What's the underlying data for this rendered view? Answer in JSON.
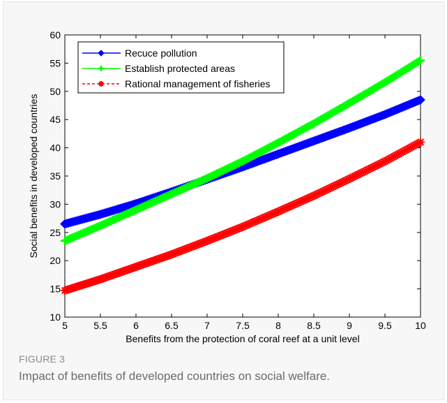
{
  "figure": {
    "label": "FIGURE 3",
    "caption": "Impact of benefits of developed countries on social welfare."
  },
  "chart_data": {
    "type": "line",
    "xlabel": "Benefits from the protection of coral reef at a unit level",
    "ylabel": "Social benefits in developed countries",
    "xlim": [
      5,
      10
    ],
    "ylim": [
      10,
      60
    ],
    "x_ticks": [
      "5",
      "5.5",
      "6",
      "6.5",
      "7",
      "7.5",
      "8",
      "8.5",
      "9",
      "9.5",
      "10"
    ],
    "y_ticks": [
      "10",
      "15",
      "20",
      "25",
      "30",
      "35",
      "40",
      "45",
      "50",
      "55",
      "60"
    ],
    "grid": false,
    "legend_position": "top-left",
    "x": [
      5,
      5.5,
      6,
      6.5,
      7,
      7.5,
      8,
      8.5,
      9,
      9.5,
      10
    ],
    "series": [
      {
        "name": "Recuce pollution",
        "color": "#0000ff",
        "marker": "diamond",
        "line_style": "solid",
        "values": [
          26.5,
          28.2,
          30.1,
          32.2,
          34.4,
          36.6,
          38.9,
          41.2,
          43.5,
          45.9,
          48.5
        ]
      },
      {
        "name": "Establish protected areas",
        "color": "#00ff00",
        "marker": "plus",
        "line_style": "solid",
        "values": [
          23.5,
          26.2,
          29.0,
          31.8,
          34.6,
          37.6,
          40.9,
          44.3,
          47.9,
          51.6,
          55.5
        ]
      },
      {
        "name": "Rational management of fisheries",
        "color": "#ff0000",
        "marker": "star",
        "line_style": "dashed",
        "values": [
          14.7,
          16.7,
          18.9,
          21.1,
          23.5,
          26.0,
          28.7,
          31.5,
          34.5,
          37.6,
          41.0
        ]
      }
    ]
  }
}
